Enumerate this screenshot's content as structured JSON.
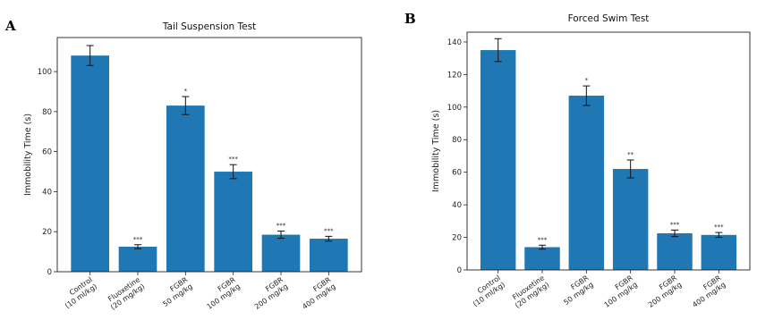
{
  "chart_data": [
    {
      "type": "bar",
      "panel_label": "A",
      "title": "Tail Suspension Test",
      "ylabel": "Immobility Time (s)",
      "xlabel": "",
      "ylim": [
        0,
        117
      ],
      "yticks": [
        0,
        20,
        40,
        60,
        80,
        100
      ],
      "categories": [
        [
          "Control",
          "(10 ml/kg)"
        ],
        [
          "Fluoxetine",
          "(20 mg/kg)"
        ],
        [
          "FGBR",
          "50 mg/kg"
        ],
        [
          "FGBR",
          "100 mg/kg"
        ],
        [
          "FGBR",
          "200 mg/kg"
        ],
        [
          "FGBR",
          "400 mg/kg"
        ]
      ],
      "values": [
        108,
        12.5,
        83,
        50,
        18.5,
        16.5
      ],
      "errors": [
        5,
        1,
        4.5,
        3.5,
        1.8,
        1.2
      ],
      "significance": [
        "",
        "***",
        "*",
        "***",
        "***",
        "***"
      ],
      "bar_color": "#1f77b4",
      "grid": false
    },
    {
      "type": "bar",
      "panel_label": "B",
      "title": "Forced Swim Test",
      "ylabel": "Immobility Time (s)",
      "xlabel": "",
      "ylim": [
        0,
        146
      ],
      "yticks": [
        0,
        20,
        40,
        60,
        80,
        100,
        120,
        140
      ],
      "categories": [
        [
          "Control",
          "(10 ml/kg)"
        ],
        [
          "Fluoxetine",
          "(20 mg/kg)"
        ],
        [
          "FGBR",
          "50 mg/kg"
        ],
        [
          "FGBR",
          "100 mg/kg"
        ],
        [
          "FGBR",
          "200 mg/kg"
        ],
        [
          "FGBR",
          "400 mg/kg"
        ]
      ],
      "values": [
        135,
        14,
        107,
        62,
        22.5,
        21.5
      ],
      "errors": [
        7,
        1.2,
        6,
        5.5,
        2,
        1.5
      ],
      "significance": [
        "",
        "***",
        "*",
        "**",
        "***",
        "***"
      ],
      "bar_color": "#1f77b4",
      "grid": false
    }
  ]
}
